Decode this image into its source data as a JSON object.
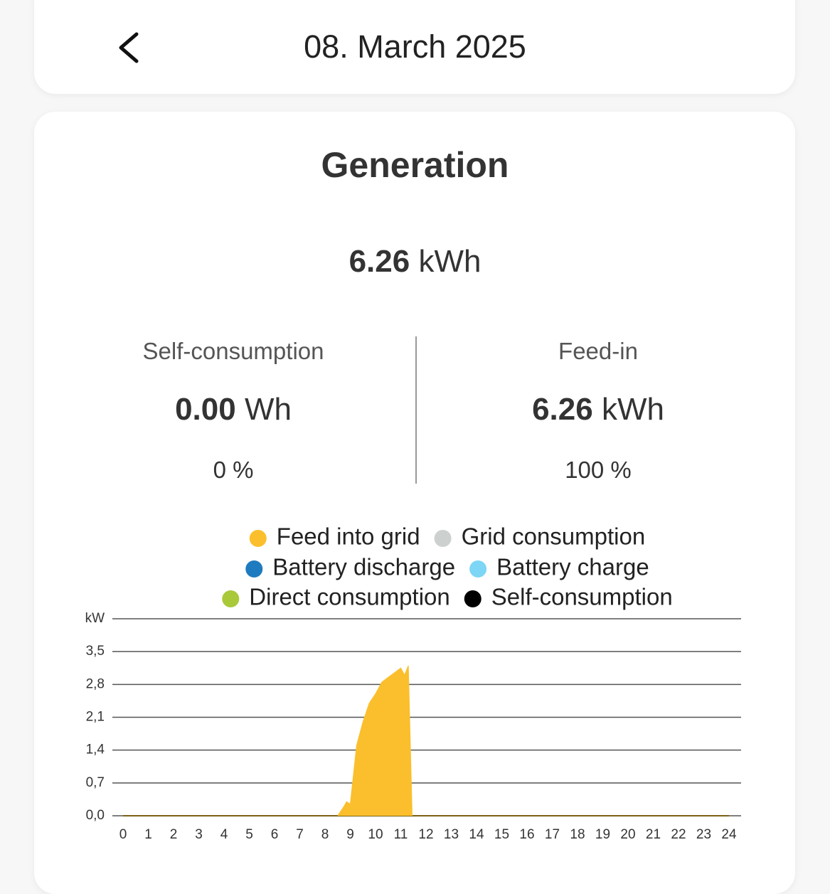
{
  "header": {
    "date": "08. March 2025"
  },
  "summary": {
    "title": "Generation",
    "total_value": "6.26",
    "total_unit": "kWh",
    "self_consumption": {
      "label": "Self-consumption",
      "value": "0.00",
      "unit": "Wh",
      "percent": "0 %"
    },
    "feed_in": {
      "label": "Feed-in",
      "value": "6.26",
      "unit": "kWh",
      "percent": "100 %"
    }
  },
  "chart_data": {
    "type": "area",
    "y_label": "kW",
    "x": [
      0,
      8.5,
      8.75,
      8.85,
      9,
      9.25,
      9.5,
      9.75,
      10,
      10.25,
      10.5,
      10.75,
      11,
      11.15,
      11.3,
      11.45,
      24
    ],
    "series": [
      {
        "name": "Feed into grid",
        "color": "#fbbf2d",
        "values": [
          0,
          0,
          0.2,
          0.3,
          0.25,
          1.5,
          2.0,
          2.4,
          2.6,
          2.85,
          2.95,
          3.05,
          3.15,
          3.0,
          3.2,
          0,
          0
        ]
      },
      {
        "name": "Grid consumption",
        "color": "#ccd0cf",
        "values": [
          0,
          0,
          0,
          0,
          0,
          0,
          0,
          0,
          0,
          0,
          0,
          0,
          0,
          0,
          0,
          0,
          0
        ]
      },
      {
        "name": "Battery discharge",
        "color": "#1f7bbf",
        "values": [
          0,
          0,
          0,
          0,
          0,
          0,
          0,
          0,
          0,
          0,
          0,
          0,
          0,
          0,
          0,
          0,
          0
        ]
      },
      {
        "name": "Battery charge",
        "color": "#7dd6f5",
        "values": [
          0,
          0,
          0,
          0,
          0,
          0,
          0,
          0,
          0,
          0,
          0,
          0,
          0,
          0,
          0,
          0,
          0
        ]
      },
      {
        "name": "Direct consumption",
        "color": "#a9c93a",
        "values": [
          0,
          0,
          0,
          0,
          0,
          0,
          0,
          0,
          0,
          0,
          0,
          0,
          0,
          0,
          0,
          0,
          0
        ]
      },
      {
        "name": "Self-consumption",
        "color": "#000000",
        "values": [
          0,
          0,
          0,
          0,
          0,
          0,
          0,
          0,
          0,
          0,
          0,
          0,
          0,
          0,
          0,
          0,
          0
        ]
      }
    ],
    "xlim": [
      0,
      24
    ],
    "xticks": [
      0,
      1,
      2,
      3,
      4,
      5,
      6,
      7,
      8,
      9,
      10,
      11,
      12,
      13,
      14,
      15,
      16,
      17,
      18,
      19,
      20,
      21,
      22,
      23,
      24
    ],
    "ylim": [
      0,
      4.2
    ],
    "yticks": [
      {
        "value": 0,
        "label": "0,0"
      },
      {
        "value": 0.7,
        "label": "0,7"
      },
      {
        "value": 1.4,
        "label": "1,4"
      },
      {
        "value": 2.1,
        "label": "2,1"
      },
      {
        "value": 2.8,
        "label": "2,8"
      },
      {
        "value": 3.5,
        "label": "3,5"
      }
    ],
    "grid": true
  }
}
